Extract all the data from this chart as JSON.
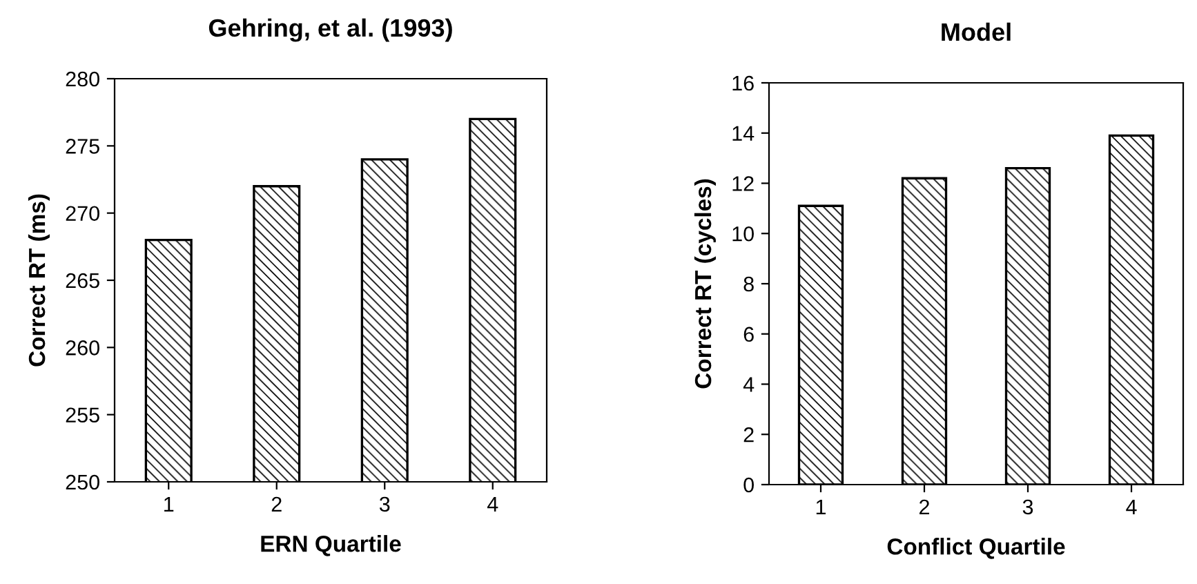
{
  "chart_data": [
    {
      "type": "bar",
      "title": "Gehring, et al. (1993)",
      "xlabel": "ERN Quartile",
      "ylabel": "Correct RT (ms)",
      "categories": [
        "1",
        "2",
        "3",
        "4"
      ],
      "values": [
        268,
        272,
        274,
        277
      ],
      "color": "#000000",
      "ylim": [
        250,
        280
      ],
      "yticks": [
        250,
        255,
        260,
        265,
        270,
        275,
        280
      ],
      "grid": false
    },
    {
      "type": "bar",
      "title": "Model",
      "xlabel": "Conflict Quartile",
      "ylabel": "Correct RT (cycles)",
      "categories": [
        "1",
        "2",
        "3",
        "4"
      ],
      "values": [
        11.1,
        12.2,
        12.6,
        13.9
      ],
      "color": "#000000",
      "ylim": [
        0,
        16
      ],
      "yticks": [
        0,
        2,
        4,
        6,
        8,
        10,
        12,
        14,
        16
      ],
      "grid": false
    }
  ]
}
